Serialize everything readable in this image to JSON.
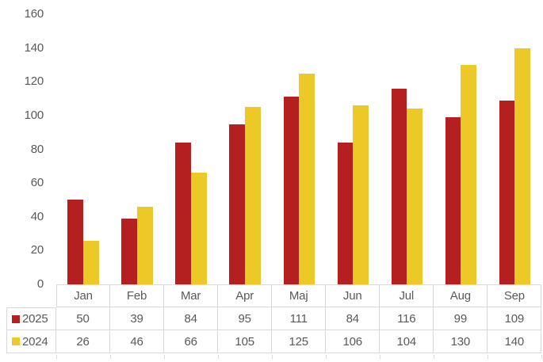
{
  "chart_data": {
    "type": "bar",
    "title": "",
    "categories": [
      "Jan",
      "Feb",
      "Mar",
      "Apr",
      "Maj",
      "Jun",
      "Jul",
      "Aug",
      "Sep"
    ],
    "series": [
      {
        "name": "2025",
        "color": "#B41F20",
        "values": [
          50,
          39,
          84,
          95,
          111,
          84,
          116,
          99,
          109
        ]
      },
      {
        "name": "2024",
        "color": "#EDC927",
        "values": [
          26,
          46,
          66,
          105,
          125,
          106,
          104,
          130,
          140
        ]
      }
    ],
    "y_axis": {
      "min": 0,
      "max": 160,
      "step": 20,
      "ticks": [
        0,
        20,
        40,
        60,
        80,
        100,
        120,
        140,
        160
      ]
    },
    "x_axis_label": "",
    "y_axis_label": "",
    "gridlines": false,
    "legend_position": "data-table-left",
    "data_table_visible": true
  },
  "colors": {
    "background": "#FFFFFF",
    "series_2025": "#B41F20",
    "series_2024": "#EDC927",
    "text": "#595959",
    "table_border": "#D9D9D9"
  }
}
